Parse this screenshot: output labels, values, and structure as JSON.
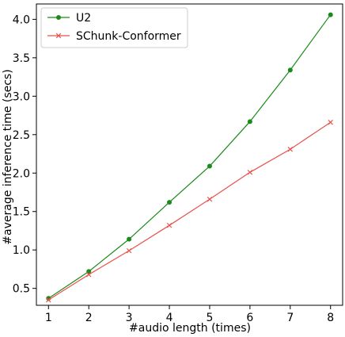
{
  "chart_data": {
    "type": "line",
    "xlabel": "#audio length (times)",
    "ylabel": "#average inference time (secs)",
    "x": [
      1,
      2,
      3,
      4,
      5,
      6,
      7,
      8
    ],
    "xlim": [
      0.7,
      8.3
    ],
    "ylim": [
      0.28,
      4.2
    ],
    "xticks": [
      "1",
      "2",
      "3",
      "4",
      "5",
      "6",
      "7",
      "8"
    ],
    "yticks": [
      "0.5",
      "1.0",
      "1.5",
      "2.0",
      "2.5",
      "3.0",
      "3.5",
      "4.0"
    ],
    "grid": false,
    "legend_position": "top-left",
    "series": [
      {
        "name": "U2",
        "values": [
          0.37,
          0.72,
          1.14,
          1.62,
          2.09,
          2.67,
          3.34,
          4.06
        ],
        "color": "#1a8a1a",
        "marker": "circle"
      },
      {
        "name": "SChunk-Conformer",
        "values": [
          0.35,
          0.68,
          0.99,
          1.32,
          1.66,
          2.01,
          2.31,
          2.66
        ],
        "color": "#e8514a",
        "marker": "x"
      }
    ]
  }
}
